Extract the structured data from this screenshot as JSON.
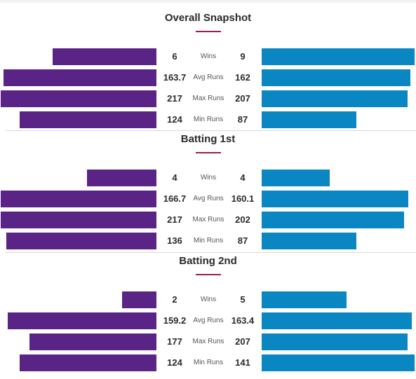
{
  "colors": {
    "team_left": "#5a2486",
    "team_right": "#0a86c2",
    "accent": "#9c1d47"
  },
  "chart_data": [
    {
      "type": "bar",
      "title": "Overall Snapshot",
      "categories": [
        "Wins",
        "Avg Runs",
        "Max Runs",
        "Min Runs"
      ],
      "series": [
        {
          "values": [
            6,
            163.7,
            217,
            124
          ],
          "labels": [
            "6",
            "163.7",
            "217",
            "124"
          ]
        },
        {
          "values": [
            9,
            162,
            207,
            87
          ],
          "labels": [
            "9",
            "162",
            "207",
            "87"
          ]
        }
      ]
    },
    {
      "type": "bar",
      "title": "Batting 1st",
      "categories": [
        "Wins",
        "Avg Runs",
        "Max Runs",
        "Min Runs"
      ],
      "series": [
        {
          "values": [
            4,
            166.7,
            217,
            136
          ],
          "labels": [
            "4",
            "166.7",
            "217",
            "136"
          ]
        },
        {
          "values": [
            4,
            160.1,
            202,
            87
          ],
          "labels": [
            "4",
            "160.1",
            "202",
            "87"
          ]
        }
      ]
    },
    {
      "type": "bar",
      "title": "Batting 2nd",
      "categories": [
        "Wins",
        "Avg Runs",
        "Max Runs",
        "Min Runs"
      ],
      "series": [
        {
          "values": [
            2,
            159.2,
            177,
            124
          ],
          "labels": [
            "2",
            "159.2",
            "177",
            "124"
          ]
        },
        {
          "values": [
            5,
            163.4,
            207,
            141
          ],
          "labels": [
            "5",
            "163.4",
            "207",
            "141"
          ]
        }
      ]
    }
  ]
}
